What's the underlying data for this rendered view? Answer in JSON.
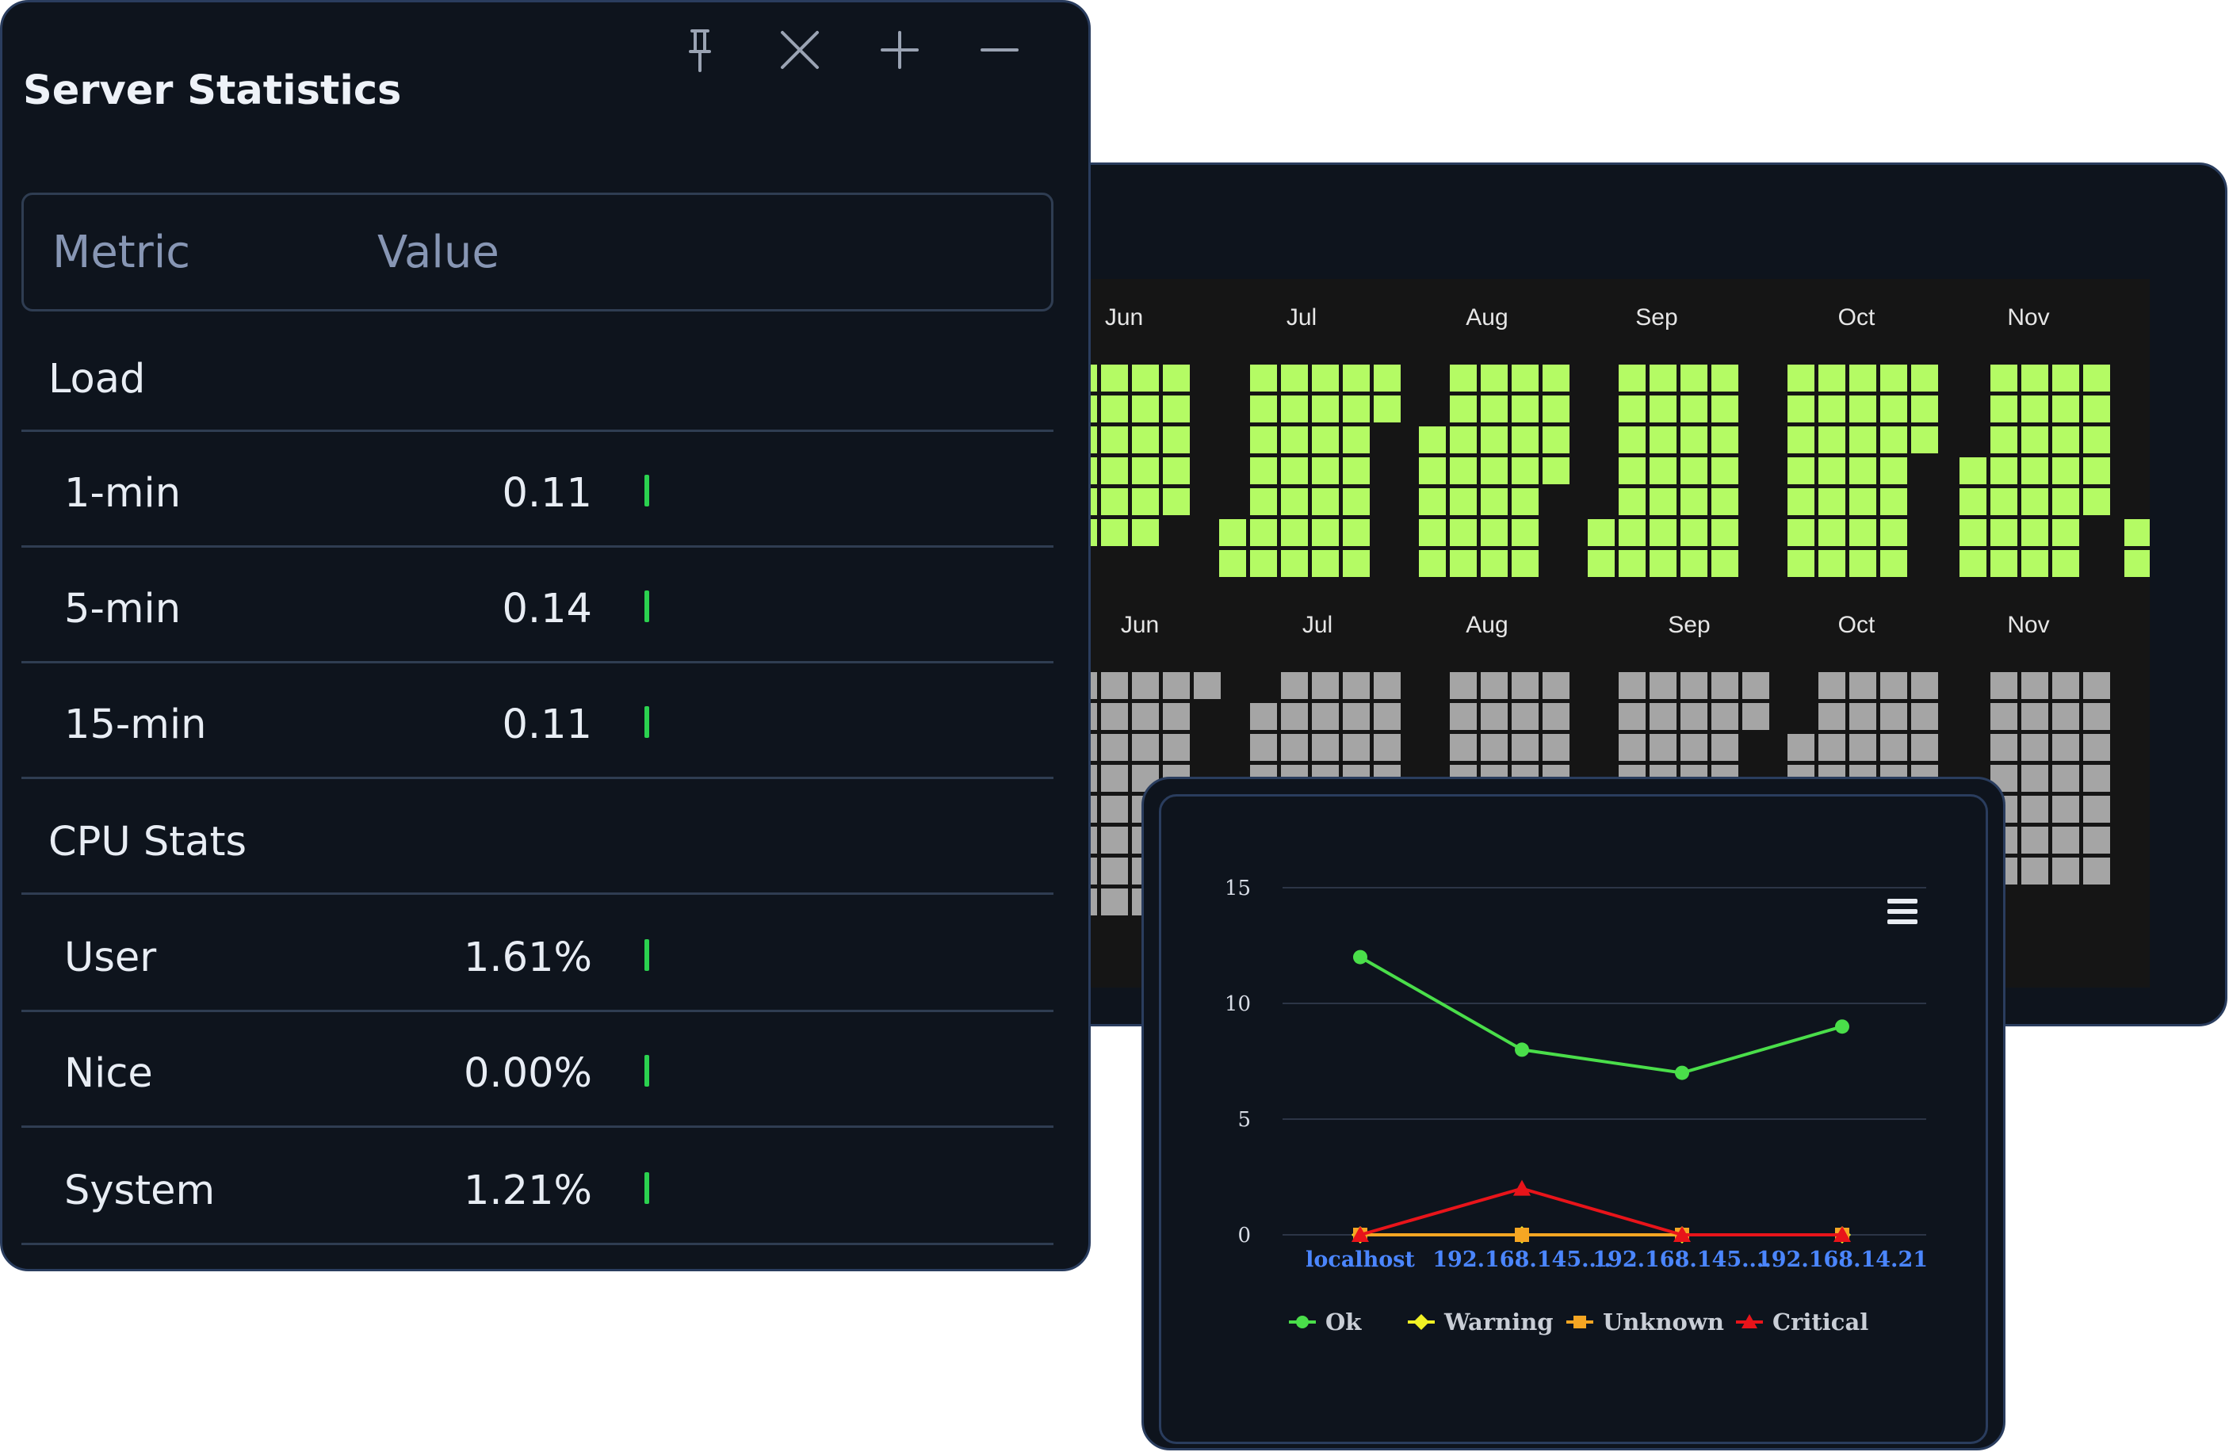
{
  "stats": {
    "title": "Server Statistics",
    "toolbar": {
      "pin_icon": "pin-icon",
      "close_icon": "close-icon",
      "add_icon": "plus-icon",
      "minimize_icon": "minus-icon"
    },
    "headers": {
      "metric": "Metric",
      "value": "Value"
    },
    "rows": [
      {
        "type": "group",
        "name": "Load"
      },
      {
        "type": "item",
        "name": "1-min",
        "value": "0.11"
      },
      {
        "type": "item",
        "name": "5-min",
        "value": "0.14"
      },
      {
        "type": "item",
        "name": "15-min",
        "value": "0.11"
      },
      {
        "type": "group",
        "name": "CPU Stats"
      },
      {
        "type": "item",
        "name": "User",
        "value": "1.61%"
      },
      {
        "type": "item",
        "name": "Nice",
        "value": "0.00%"
      },
      {
        "type": "item",
        "name": "System",
        "value": "1.21%"
      }
    ],
    "bar_color": "#2bd14f"
  },
  "heatmap": {
    "months_top": [
      "Jun",
      "Jul",
      "Aug",
      "Sep",
      "Oct",
      "Nov"
    ],
    "months_bottom": [
      "Jun",
      "Jul",
      "Aug",
      "Sep",
      "Oct",
      "Nov"
    ],
    "top_color": "#b4fb64",
    "bottom_color": "#a5a5a5"
  },
  "chart_data": {
    "type": "line",
    "categories": [
      "localhost",
      "192.168.145....",
      "192.168.145....",
      "192.168.14.21"
    ],
    "ylim": [
      0,
      15
    ],
    "yticks": [
      0,
      5,
      10,
      15
    ],
    "grid": true,
    "legend_position": "bottom",
    "menu_icon": "hamburger-menu-icon",
    "series": [
      {
        "name": "Ok",
        "color": "#4ade4a",
        "marker": "circle",
        "values": [
          12,
          8,
          7,
          9
        ]
      },
      {
        "name": "Warning",
        "color": "#f2f224",
        "marker": "diamond",
        "values": [
          0,
          0,
          0,
          0
        ]
      },
      {
        "name": "Unknown",
        "color": "#f5a623",
        "marker": "square",
        "values": [
          0,
          0,
          0,
          0
        ]
      },
      {
        "name": "Critical",
        "color": "#e8141a",
        "marker": "triangle",
        "values": [
          0,
          2,
          0,
          0
        ]
      }
    ]
  }
}
